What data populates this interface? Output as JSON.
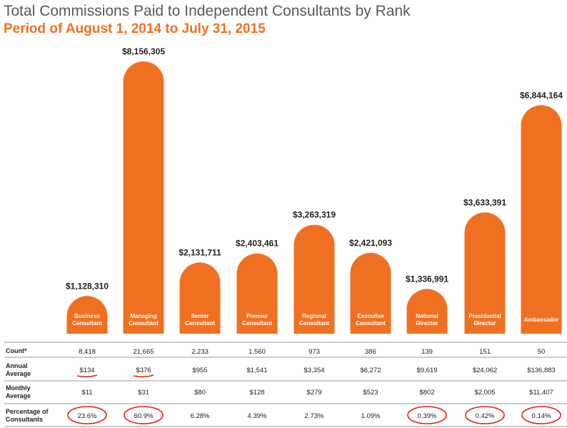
{
  "title": "Total Commissions Paid to Independent Consultants by Rank",
  "subtitle": "Period of August 1, 2014 to July 31, 2015",
  "colors": {
    "bar": "#f07021",
    "title": "#5a5a5a",
    "subtitle": "#f07021",
    "annotation": "#e02020",
    "rule": "#9a9a9a"
  },
  "chart_data": {
    "type": "bar",
    "categories": [
      [
        "Business",
        "Consultant"
      ],
      [
        "Managing",
        "Consultant"
      ],
      [
        "Senior",
        "Consultant"
      ],
      [
        "Premier",
        "Consultant"
      ],
      [
        "Regional",
        "Consultant"
      ],
      [
        "Executive",
        "Consultant"
      ],
      [
        "National",
        "Director"
      ],
      [
        "Presidential",
        "Director"
      ],
      [
        "Ambassador"
      ]
    ],
    "values": [
      1128310,
      8156305,
      2131711,
      2403461,
      3263319,
      2421093,
      1336991,
      3633391,
      6844164
    ],
    "value_labels": [
      "$1,128,310",
      "$8,156,305",
      "$2,131,711",
      "$2,403,461",
      "$3,263,319",
      "$2,421,093",
      "$1,336,991",
      "$3,633,391",
      "$6,844,164"
    ],
    "ylim": [
      0,
      8156305
    ],
    "grid": false,
    "xlabel": "",
    "ylabel": ""
  },
  "table": {
    "rows": [
      {
        "label": [
          "Count*"
        ],
        "values": [
          "8,418",
          "21,665",
          "2,233",
          "1,560",
          "973",
          "386",
          "139",
          "151",
          "50"
        ]
      },
      {
        "label": [
          "Annual",
          "Average"
        ],
        "values": [
          "$134",
          "$376",
          "$955",
          "$1,541",
          "$3,354",
          "$6,272",
          "$9,619",
          "$24,062",
          "$136,883"
        ]
      },
      {
        "label": [
          "Monthly",
          "Average"
        ],
        "values": [
          "$11",
          "$31",
          "$80",
          "$128",
          "$279",
          "$523",
          "$802",
          "$2,005",
          "$11,407"
        ]
      },
      {
        "label": [
          "Percentage of",
          "Consultants"
        ],
        "values": [
          "23.6%",
          "60.9%",
          "6.28%",
          "4.39%",
          "2.73%",
          "1.09%",
          "0.39%",
          "0.42%",
          "0.14%"
        ]
      }
    ]
  },
  "annotations": {
    "circled_percentage_columns": [
      0,
      1,
      6,
      7,
      8
    ],
    "underlined_annual_columns": [
      0,
      1
    ]
  }
}
